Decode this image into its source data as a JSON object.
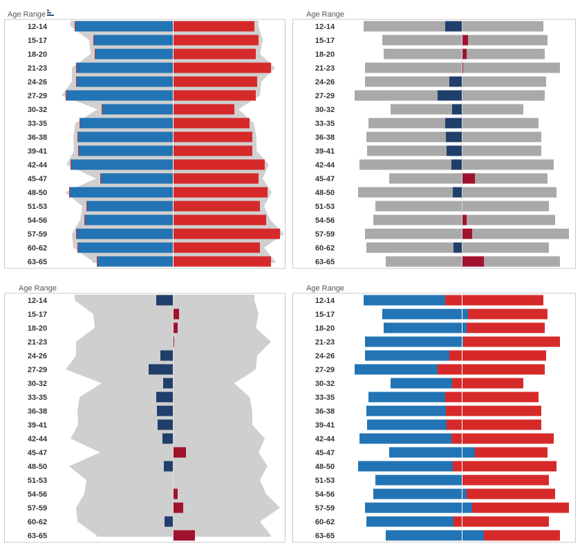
{
  "colors": {
    "male": "#2274b4",
    "female": "#d62a2a",
    "grey": "#a9a9a9",
    "light_grey": "#d0d0d0",
    "navy": "#203f6b",
    "maroon": "#a0122e",
    "frame": "#c8c8c8",
    "label": "#333333",
    "title": "#555555"
  },
  "panels": [
    {
      "title": "Age Range",
      "style": "area_bars",
      "show_sort_icon": true
    },
    {
      "title": "Age Range",
      "style": "grey_diff",
      "show_sort_icon": false
    },
    {
      "title": "Age Range",
      "style": "area_diff",
      "show_sort_icon": false
    },
    {
      "title": "Age Range",
      "style": "split_bars",
      "show_sort_icon": false
    }
  ],
  "chart_data": {
    "type": "bar",
    "layout": "population pyramid",
    "categories": [
      "12-14",
      "15-17",
      "18-20",
      "21-23",
      "24-26",
      "27-29",
      "30-32",
      "33-35",
      "36-38",
      "39-41",
      "42-44",
      "45-47",
      "48-50",
      "51-53",
      "54-56",
      "57-59",
      "60-62",
      "63-65"
    ],
    "series": [
      {
        "values": [
          142,
          115,
          113,
          140,
          140,
          155,
          103,
          135,
          138,
          137,
          148,
          105,
          150,
          125,
          128,
          140,
          138,
          110
        ]
      },
      {
        "values": [
          118,
          124,
          120,
          142,
          122,
          120,
          89,
          111,
          115,
          115,
          133,
          124,
          137,
          126,
          135,
          155,
          126,
          142
        ]
      }
    ]
  }
}
